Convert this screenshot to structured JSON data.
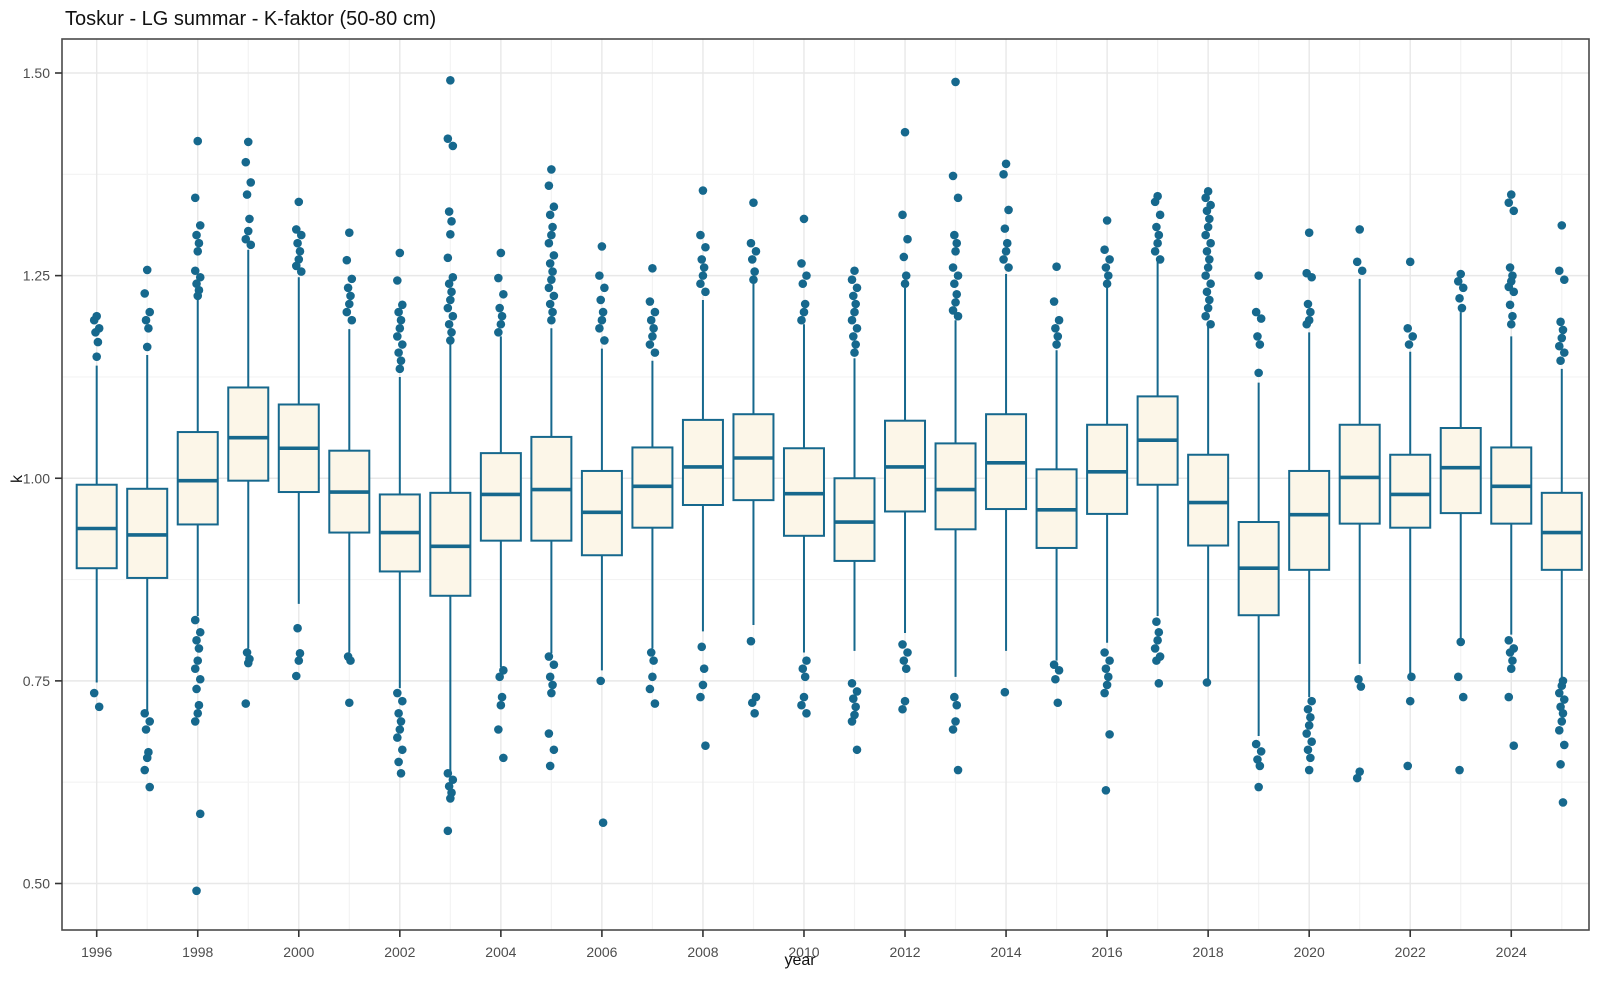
{
  "title": "Toskur - LG summar - K-faktor (50-80 cm)",
  "axes": {
    "x_label": "year",
    "y_label": "k",
    "y_tick_labels": [
      "1.50",
      "1.25",
      "1.00",
      "0.75",
      "0.50"
    ],
    "x_tick_labels": [
      "1996",
      "1998",
      "2000",
      "2002",
      "2004",
      "2006",
      "2008",
      "2010",
      "2012",
      "2014",
      "2016",
      "2018",
      "2020",
      "2022",
      "2024"
    ]
  },
  "chart_data": {
    "type": "boxplot",
    "title": "Toskur - LG summar - K-faktor (50-80 cm)",
    "xlabel": "year",
    "ylabel": "k",
    "ylim": [
      0.44,
      1.545
    ],
    "xlim": [
      1995.3,
      2025.55
    ],
    "y_major_ticks": [
      0.5,
      0.75,
      1.0,
      1.25,
      1.5
    ],
    "y_minor_gridlines": [
      0.625,
      0.875,
      1.125,
      1.375
    ],
    "x_major_ticks": [
      1996,
      1998,
      2000,
      2002,
      2004,
      2006,
      2008,
      2010,
      2012,
      2014,
      2016,
      2018,
      2020,
      2022,
      2024
    ],
    "x_minor_gridlines": [
      1997,
      1999,
      2001,
      2003,
      2005,
      2007,
      2009,
      2011,
      2013,
      2015,
      2017,
      2019,
      2021,
      2023,
      2025
    ],
    "grid": true,
    "legend": "none",
    "colors": {
      "box_stroke": "#16688d",
      "box_fill": "#fcf6e8",
      "median": "#16688d",
      "outlier": "#16688d",
      "grid_major": "#e8e8e8",
      "grid_minor": "#f3f3f3",
      "panel_border": "#4a4a4a",
      "tick_label": "#4d4d4d",
      "background": "#ffffff"
    },
    "series": [
      {
        "year": 1996,
        "q1": 0.889,
        "median": 0.938,
        "q3": 0.992,
        "whisker_low": 0.748,
        "whisker_high": 1.139,
        "outliers_low": [
          0.735,
          0.718
        ],
        "outliers_high": [
          1.2,
          1.195,
          1.185,
          1.18,
          1.168,
          1.15
        ]
      },
      {
        "year": 1997,
        "q1": 0.877,
        "median": 0.93,
        "q3": 0.987,
        "whisker_low": 0.713,
        "whisker_high": 1.152,
        "outliers_low": [
          0.71,
          0.7,
          0.69,
          0.662,
          0.655,
          0.64,
          0.619
        ],
        "outliers_high": [
          1.257,
          1.228,
          1.205,
          1.195,
          1.185,
          1.162
        ]
      },
      {
        "year": 1998,
        "q1": 0.943,
        "median": 0.997,
        "q3": 1.057,
        "whisker_low": 0.83,
        "whisker_high": 1.222,
        "outliers_low": [
          0.825,
          0.81,
          0.8,
          0.79,
          0.775,
          0.765,
          0.752,
          0.74,
          0.72,
          0.71,
          0.7,
          0.586,
          0.491
        ],
        "outliers_high": [
          1.416,
          1.346,
          1.312,
          1.3,
          1.29,
          1.28,
          1.256,
          1.248,
          1.24,
          1.232,
          1.225
        ]
      },
      {
        "year": 1999,
        "q1": 0.997,
        "median": 1.05,
        "q3": 1.112,
        "whisker_low": 0.79,
        "whisker_high": 1.282,
        "outliers_low": [
          0.785,
          0.777,
          0.772,
          0.722
        ],
        "outliers_high": [
          1.415,
          1.39,
          1.365,
          1.35,
          1.32,
          1.305,
          1.295,
          1.288
        ]
      },
      {
        "year": 2000,
        "q1": 0.983,
        "median": 1.037,
        "q3": 1.091,
        "whisker_low": 0.845,
        "whisker_high": 1.248,
        "outliers_low": [
          0.815,
          0.784,
          0.775,
          0.756
        ],
        "outliers_high": [
          1.341,
          1.307,
          1.3,
          1.29,
          1.28,
          1.27,
          1.262,
          1.255
        ]
      },
      {
        "year": 2001,
        "q1": 0.933,
        "median": 0.983,
        "q3": 1.034,
        "whisker_low": 0.785,
        "whisker_high": 1.184,
        "outliers_low": [
          0.78,
          0.775,
          0.723
        ],
        "outliers_high": [
          1.303,
          1.269,
          1.246,
          1.235,
          1.225,
          1.215,
          1.205,
          1.195
        ]
      },
      {
        "year": 2002,
        "q1": 0.885,
        "median": 0.933,
        "q3": 0.98,
        "whisker_low": 0.741,
        "whisker_high": 1.125,
        "outliers_low": [
          0.735,
          0.725,
          0.71,
          0.7,
          0.69,
          0.68,
          0.665,
          0.65,
          0.636
        ],
        "outliers_high": [
          1.278,
          1.244,
          1.214,
          1.205,
          1.195,
          1.185,
          1.175,
          1.165,
          1.155,
          1.145,
          1.135
        ]
      },
      {
        "year": 2003,
        "q1": 0.855,
        "median": 0.916,
        "q3": 0.982,
        "whisker_low": 0.638,
        "whisker_high": 1.167,
        "outliers_low": [
          0.636,
          0.628,
          0.62,
          0.612,
          0.605,
          0.565
        ],
        "outliers_high": [
          1.491,
          1.419,
          1.41,
          1.329,
          1.317,
          1.301,
          1.272,
          1.248,
          1.24,
          1.23,
          1.22,
          1.21,
          1.2,
          1.19,
          1.18,
          1.17
        ]
      },
      {
        "year": 2004,
        "q1": 0.923,
        "median": 0.98,
        "q3": 1.031,
        "whisker_low": 0.767,
        "whisker_high": 1.175,
        "outliers_low": [
          0.763,
          0.755,
          0.73,
          0.72,
          0.69,
          0.655
        ],
        "outliers_high": [
          1.278,
          1.247,
          1.227,
          1.21,
          1.2,
          1.19,
          1.18
        ]
      },
      {
        "year": 2005,
        "q1": 0.923,
        "median": 0.986,
        "q3": 1.051,
        "whisker_low": 0.784,
        "whisker_high": 1.185,
        "outliers_low": [
          0.78,
          0.77,
          0.755,
          0.745,
          0.735,
          0.685,
          0.665,
          0.645
        ],
        "outliers_high": [
          1.381,
          1.361,
          1.335,
          1.325,
          1.31,
          1.3,
          1.29,
          1.275,
          1.265,
          1.255,
          1.245,
          1.235,
          1.225,
          1.215,
          1.205,
          1.195
        ]
      },
      {
        "year": 2006,
        "q1": 0.905,
        "median": 0.958,
        "q3": 1.009,
        "whisker_low": 0.763,
        "whisker_high": 1.16,
        "outliers_low": [
          0.75,
          0.575
        ],
        "outliers_high": [
          1.286,
          1.25,
          1.235,
          1.22,
          1.205,
          1.195,
          1.185,
          1.17
        ]
      },
      {
        "year": 2007,
        "q1": 0.939,
        "median": 0.99,
        "q3": 1.038,
        "whisker_low": 0.79,
        "whisker_high": 1.145,
        "outliers_low": [
          0.785,
          0.775,
          0.755,
          0.74,
          0.722
        ],
        "outliers_high": [
          1.259,
          1.218,
          1.205,
          1.195,
          1.185,
          1.175,
          1.165,
          1.155
        ]
      },
      {
        "year": 2008,
        "q1": 0.967,
        "median": 1.014,
        "q3": 1.072,
        "whisker_low": 0.811,
        "whisker_high": 1.22,
        "outliers_low": [
          0.792,
          0.765,
          0.745,
          0.73,
          0.67
        ],
        "outliers_high": [
          1.355,
          1.3,
          1.285,
          1.27,
          1.26,
          1.25,
          1.24,
          1.23
        ]
      },
      {
        "year": 2009,
        "q1": 0.973,
        "median": 1.025,
        "q3": 1.079,
        "whisker_low": 0.819,
        "whisker_high": 1.24,
        "outliers_low": [
          0.799,
          0.73,
          0.723,
          0.71
        ],
        "outliers_high": [
          1.34,
          1.29,
          1.28,
          1.27,
          1.255,
          1.245
        ]
      },
      {
        "year": 2010,
        "q1": 0.929,
        "median": 0.981,
        "q3": 1.037,
        "whisker_low": 0.785,
        "whisker_high": 1.19,
        "outliers_low": [
          0.775,
          0.765,
          0.755,
          0.73,
          0.72,
          0.71
        ],
        "outliers_high": [
          1.32,
          1.265,
          1.25,
          1.24,
          1.215,
          1.205,
          1.195
        ]
      },
      {
        "year": 2011,
        "q1": 0.898,
        "median": 0.946,
        "q3": 1.0,
        "whisker_low": 0.787,
        "whisker_high": 1.148,
        "outliers_low": [
          0.747,
          0.737,
          0.728,
          0.718,
          0.708,
          0.7,
          0.665
        ],
        "outliers_high": [
          1.256,
          1.245,
          1.235,
          1.225,
          1.215,
          1.205,
          1.195,
          1.185,
          1.175,
          1.165,
          1.155
        ]
      },
      {
        "year": 2012,
        "q1": 0.959,
        "median": 1.014,
        "q3": 1.071,
        "whisker_low": 0.809,
        "whisker_high": 1.235,
        "outliers_low": [
          0.795,
          0.785,
          0.775,
          0.765,
          0.725,
          0.715
        ],
        "outliers_high": [
          1.427,
          1.325,
          1.295,
          1.273,
          1.25,
          1.24
        ]
      },
      {
        "year": 2013,
        "q1": 0.937,
        "median": 0.986,
        "q3": 1.043,
        "whisker_low": 0.755,
        "whisker_high": 1.195,
        "outliers_low": [
          0.73,
          0.72,
          0.7,
          0.69,
          0.64
        ],
        "outliers_high": [
          1.489,
          1.373,
          1.346,
          1.3,
          1.29,
          1.28,
          1.26,
          1.25,
          1.24,
          1.227,
          1.217,
          1.207,
          1.2
        ]
      },
      {
        "year": 2014,
        "q1": 0.962,
        "median": 1.019,
        "q3": 1.079,
        "whisker_low": 0.787,
        "whisker_high": 1.252,
        "outliers_low": [
          0.736
        ],
        "outliers_high": [
          1.388,
          1.375,
          1.331,
          1.308,
          1.29,
          1.28,
          1.27,
          1.26
        ]
      },
      {
        "year": 2015,
        "q1": 0.914,
        "median": 0.961,
        "q3": 1.011,
        "whisker_low": 0.775,
        "whisker_high": 1.158,
        "outliers_low": [
          0.77,
          0.763,
          0.752,
          0.723
        ],
        "outliers_high": [
          1.261,
          1.218,
          1.195,
          1.185,
          1.175,
          1.165
        ]
      },
      {
        "year": 2016,
        "q1": 0.956,
        "median": 1.008,
        "q3": 1.066,
        "whisker_low": 0.797,
        "whisker_high": 1.237,
        "outliers_low": [
          0.785,
          0.775,
          0.765,
          0.755,
          0.745,
          0.735,
          0.684,
          0.615
        ],
        "outliers_high": [
          1.318,
          1.282,
          1.27,
          1.26,
          1.25,
          1.24
        ]
      },
      {
        "year": 2017,
        "q1": 0.992,
        "median": 1.047,
        "q3": 1.101,
        "whisker_low": 0.83,
        "whisker_high": 1.267,
        "outliers_low": [
          0.823,
          0.81,
          0.8,
          0.79,
          0.78,
          0.775,
          0.747
        ],
        "outliers_high": [
          1.348,
          1.341,
          1.325,
          1.31,
          1.3,
          1.29,
          1.28,
          1.27
        ]
      },
      {
        "year": 2018,
        "q1": 0.917,
        "median": 0.97,
        "q3": 1.029,
        "whisker_low": 0.752,
        "whisker_high": 1.188,
        "outliers_low": [
          0.748
        ],
        "outliers_high": [
          1.354,
          1.346,
          1.337,
          1.33,
          1.32,
          1.31,
          1.3,
          1.29,
          1.28,
          1.27,
          1.26,
          1.25,
          1.24,
          1.23,
          1.22,
          1.21,
          1.2,
          1.19
        ]
      },
      {
        "year": 2019,
        "q1": 0.831,
        "median": 0.889,
        "q3": 0.946,
        "whisker_low": 0.682,
        "whisker_high": 1.118,
        "outliers_low": [
          0.672,
          0.663,
          0.653,
          0.645,
          0.619
        ],
        "outliers_high": [
          1.25,
          1.205,
          1.197,
          1.175,
          1.165,
          1.13
        ]
      },
      {
        "year": 2020,
        "q1": 0.887,
        "median": 0.955,
        "q3": 1.009,
        "whisker_low": 0.73,
        "whisker_high": 1.18,
        "outliers_low": [
          0.725,
          0.715,
          0.705,
          0.695,
          0.685,
          0.675,
          0.665,
          0.655,
          0.64
        ],
        "outliers_high": [
          1.303,
          1.253,
          1.248,
          1.215,
          1.205,
          1.195,
          1.19
        ]
      },
      {
        "year": 2021,
        "q1": 0.944,
        "median": 1.001,
        "q3": 1.066,
        "whisker_low": 0.771,
        "whisker_high": 1.246,
        "outliers_low": [
          0.752,
          0.743,
          0.638,
          0.63
        ],
        "outliers_high": [
          1.307,
          1.267,
          1.256
        ]
      },
      {
        "year": 2022,
        "q1": 0.939,
        "median": 0.98,
        "q3": 1.029,
        "whisker_low": 0.758,
        "whisker_high": 1.156,
        "outliers_low": [
          0.755,
          0.725,
          0.645
        ],
        "outliers_high": [
          1.267,
          1.185,
          1.175,
          1.165
        ]
      },
      {
        "year": 2023,
        "q1": 0.957,
        "median": 1.013,
        "q3": 1.062,
        "whisker_low": 0.8,
        "whisker_high": 1.205,
        "outliers_low": [
          0.798,
          0.755,
          0.73,
          0.64
        ],
        "outliers_high": [
          1.252,
          1.243,
          1.235,
          1.222,
          1.21
        ]
      },
      {
        "year": 2024,
        "q1": 0.944,
        "median": 0.99,
        "q3": 1.038,
        "whisker_low": 0.807,
        "whisker_high": 1.175,
        "outliers_low": [
          0.8,
          0.79,
          0.785,
          0.775,
          0.765,
          0.73,
          0.67
        ],
        "outliers_high": [
          1.35,
          1.34,
          1.33,
          1.26,
          1.25,
          1.243,
          1.236,
          1.23,
          1.214,
          1.2,
          1.19
        ]
      },
      {
        "year": 2025,
        "q1": 0.887,
        "median": 0.933,
        "q3": 0.982,
        "whisker_low": 0.754,
        "whisker_high": 1.135,
        "outliers_low": [
          0.75,
          0.744,
          0.735,
          0.727,
          0.718,
          0.71,
          0.7,
          0.689,
          0.671,
          0.647,
          0.6
        ],
        "outliers_high": [
          1.312,
          1.256,
          1.245,
          1.193,
          1.183,
          1.173,
          1.163,
          1.155,
          1.145
        ]
      }
    ]
  }
}
